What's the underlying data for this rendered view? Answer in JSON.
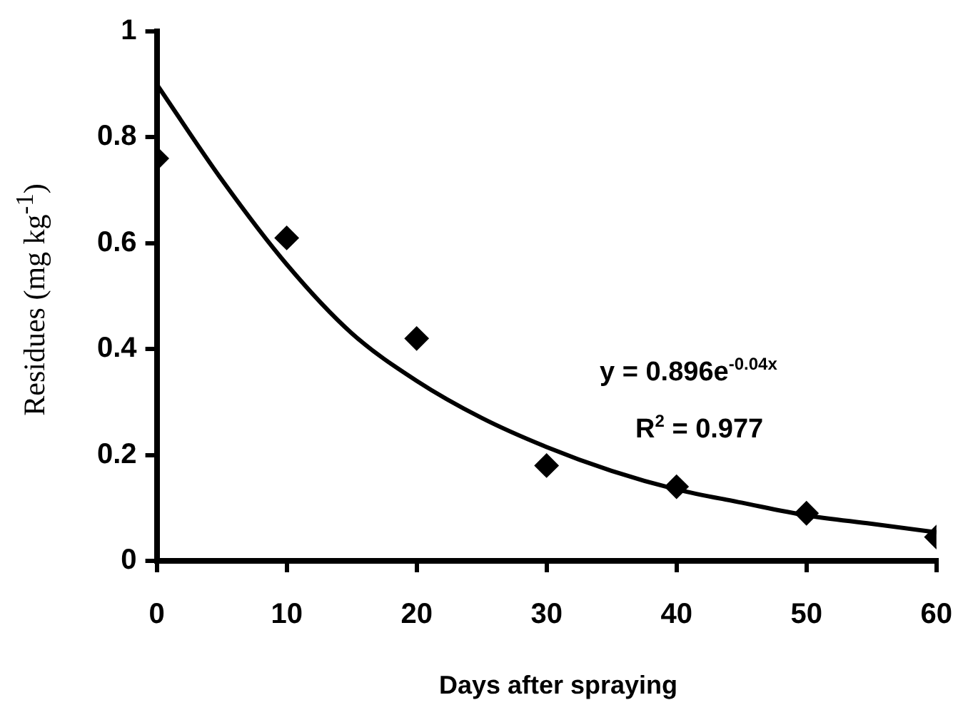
{
  "chart_data": {
    "type": "scatter",
    "xlabel": "Days after spraying",
    "ylabel": "Residues (mg kg$^{-1}$)",
    "xlim": [
      0,
      60
    ],
    "xticks": [
      0,
      10,
      20,
      30,
      40,
      50,
      60
    ],
    "ylim": [
      0,
      1
    ],
    "yticks": [
      0,
      0.2,
      0.4,
      0.6,
      0.8,
      1
    ],
    "grid": false,
    "legend": false,
    "annotations": [
      "y = 0.896e$^{-0.04x}$",
      "R$^{2}$ = 0.977"
    ],
    "series": [
      {
        "type": "scatter",
        "color": "#000000",
        "marker": "diamond",
        "x": [
          0,
          10,
          20,
          30,
          40,
          50,
          60
        ],
        "values": [
          0.76,
          0.61,
          0.42,
          0.18,
          0.14,
          0.09,
          0.045
        ]
      },
      {
        "type": "line",
        "color": "#000000",
        "marker": "none",
        "line_style": "solid",
        "x": [
          0,
          5,
          10,
          15,
          20,
          25,
          30,
          35,
          40,
          45,
          50,
          55,
          60
        ],
        "values": [
          0.9,
          0.72,
          0.56,
          0.43,
          0.34,
          0.27,
          0.215,
          0.17,
          0.135,
          0.11,
          0.086,
          0.07,
          0.054
        ]
      }
    ]
  }
}
